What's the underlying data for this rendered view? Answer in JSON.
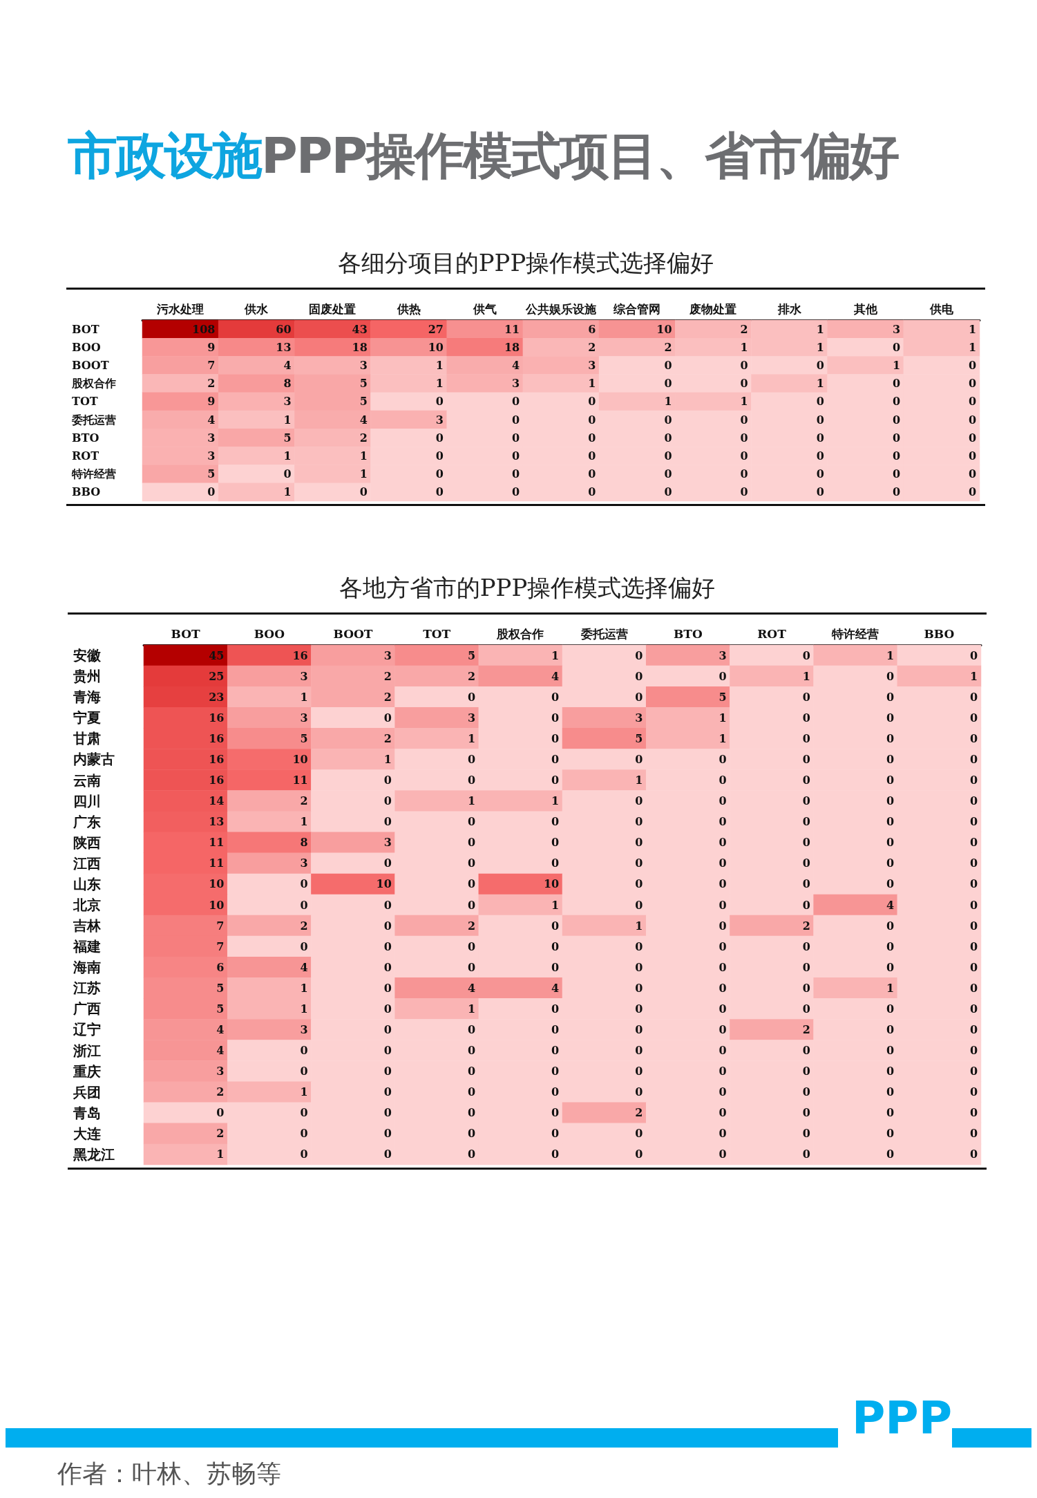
{
  "chart_data": [
    {
      "type": "heatmap",
      "title": "市政设施PPP操作模式项目、省市偏好",
      "subtitle": "各细分项目的PPP操作模式选择偏好",
      "categories": [
        "污水处理",
        "供水",
        "固废处置",
        "供热",
        "供气",
        "公共娱乐设施",
        "综合管网",
        "废物处置",
        "排水",
        "其他",
        "供电"
      ],
      "y_categories": [
        "BOT",
        "BOO",
        "BOOT",
        "股权合作",
        "TOT",
        "委托运营",
        "BTO",
        "ROT",
        "特许经营",
        "BBO"
      ],
      "cells": [
        [
          108,
          60,
          43,
          27,
          11,
          6,
          10,
          2,
          1,
          3,
          1
        ],
        [
          9,
          13,
          18,
          10,
          18,
          2,
          2,
          1,
          1,
          0,
          1
        ],
        [
          7,
          4,
          3,
          1,
          4,
          3,
          0,
          0,
          0,
          1,
          0
        ],
        [
          2,
          8,
          5,
          1,
          3,
          1,
          0,
          0,
          1,
          0,
          0
        ],
        [
          9,
          3,
          5,
          0,
          0,
          0,
          1,
          1,
          0,
          0,
          0
        ],
        [
          4,
          1,
          4,
          3,
          0,
          0,
          0,
          0,
          0,
          0,
          0
        ],
        [
          3,
          5,
          2,
          0,
          0,
          0,
          0,
          0,
          0,
          0,
          0
        ],
        [
          3,
          1,
          1,
          0,
          0,
          0,
          0,
          0,
          0,
          0,
          0
        ],
        [
          5,
          0,
          1,
          0,
          0,
          0,
          0,
          0,
          0,
          0,
          0
        ],
        [
          0,
          1,
          0,
          0,
          0,
          0,
          0,
          0,
          0,
          0,
          0
        ]
      ],
      "data_labels": true
    },
    {
      "type": "heatmap",
      "title": "各地方省市的PPP操作模式选择偏好",
      "categories": [
        "BOT",
        "BOO",
        "BOOT",
        "TOT",
        "股权合作",
        "委托运营",
        "BTO",
        "ROT",
        "特许经营",
        "BBO"
      ],
      "y_categories": [
        "安徽",
        "贵州",
        "青海",
        "宁夏",
        "甘肃",
        "内蒙古",
        "云南",
        "四川",
        "广东",
        "陕西",
        "江西",
        "山东",
        "北京",
        "吉林",
        "福建",
        "海南",
        "江苏",
        "广西",
        "辽宁",
        "浙江",
        "重庆",
        "兵团",
        "青岛",
        "大连",
        "黑龙江"
      ],
      "cells": [
        [
          45,
          16,
          3,
          5,
          1,
          0,
          3,
          0,
          1,
          0
        ],
        [
          25,
          3,
          2,
          2,
          4,
          0,
          0,
          1,
          0,
          1
        ],
        [
          23,
          1,
          2,
          0,
          0,
          0,
          5,
          0,
          0,
          0
        ],
        [
          16,
          3,
          0,
          3,
          0,
          3,
          1,
          0,
          0,
          0
        ],
        [
          16,
          5,
          2,
          1,
          0,
          5,
          1,
          0,
          0,
          0
        ],
        [
          16,
          10,
          1,
          0,
          0,
          0,
          0,
          0,
          0,
          0
        ],
        [
          16,
          11,
          0,
          0,
          0,
          1,
          0,
          0,
          0,
          0
        ],
        [
          14,
          2,
          0,
          1,
          1,
          0,
          0,
          0,
          0,
          0
        ],
        [
          13,
          1,
          0,
          0,
          0,
          0,
          0,
          0,
          0,
          0
        ],
        [
          11,
          8,
          3,
          0,
          0,
          0,
          0,
          0,
          0,
          0
        ],
        [
          11,
          3,
          0,
          0,
          0,
          0,
          0,
          0,
          0,
          0
        ],
        [
          10,
          0,
          10,
          0,
          10,
          0,
          0,
          0,
          0,
          0
        ],
        [
          10,
          0,
          0,
          0,
          1,
          0,
          0,
          0,
          4,
          0
        ],
        [
          7,
          2,
          0,
          2,
          0,
          1,
          0,
          2,
          0,
          0
        ],
        [
          7,
          0,
          0,
          0,
          0,
          0,
          0,
          0,
          0,
          0
        ],
        [
          6,
          4,
          0,
          0,
          0,
          0,
          0,
          0,
          0,
          0
        ],
        [
          5,
          1,
          0,
          4,
          4,
          0,
          0,
          0,
          1,
          0
        ],
        [
          5,
          1,
          0,
          1,
          0,
          0,
          0,
          0,
          0,
          0
        ],
        [
          4,
          3,
          0,
          0,
          0,
          0,
          0,
          2,
          0,
          0
        ],
        [
          4,
          0,
          0,
          0,
          0,
          0,
          0,
          0,
          0,
          0
        ],
        [
          3,
          0,
          0,
          0,
          0,
          0,
          0,
          0,
          0,
          0
        ],
        [
          2,
          1,
          0,
          0,
          0,
          0,
          0,
          0,
          0,
          0
        ],
        [
          0,
          0,
          0,
          0,
          0,
          2,
          0,
          0,
          0,
          0
        ],
        [
          2,
          0,
          0,
          0,
          0,
          0,
          0,
          0,
          0,
          0
        ],
        [
          1,
          0,
          0,
          0,
          0,
          0,
          0,
          0,
          0,
          0
        ]
      ],
      "data_labels": true,
      "annotations": [
        "PPP",
        "作者：叶林、苏畅等"
      ]
    }
  ]
}
